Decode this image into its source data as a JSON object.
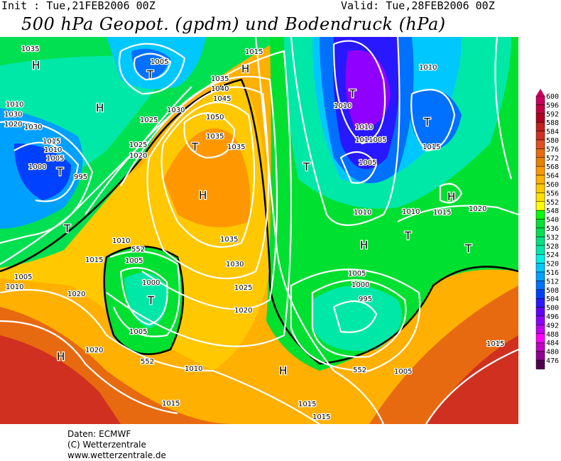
{
  "header": {
    "init": "Init : Tue,21FEB2006 00Z",
    "valid": "Valid: Tue,28FEB2006 00Z",
    "title": "500 hPa Geopot. (gpdm) und Bodendruck (hPa)"
  },
  "footer": {
    "line1": "Daten: ECMWF",
    "line2": "(C) Wetterzentrale",
    "line3": "www.wetterzentrale.de"
  },
  "colorbar": {
    "levels": [
      "600",
      "596",
      "592",
      "588",
      "584",
      "580",
      "576",
      "572",
      "568",
      "564",
      "560",
      "556",
      "552",
      "548",
      "540",
      "536",
      "532",
      "528",
      "524",
      "520",
      "516",
      "512",
      "508",
      "504",
      "500",
      "496",
      "492",
      "488",
      "484",
      "480",
      "476"
    ],
    "colors": [
      "#c8005a",
      "#c00040",
      "#b0001e",
      "#c0201e",
      "#d03020",
      "#e05020",
      "#e86a10",
      "#e88000",
      "#ff9800",
      "#ffb000",
      "#ffc800",
      "#ffe000",
      "#ffff00",
      "#00ff00",
      "#00e030",
      "#00e050",
      "#00e080",
      "#00e8a8",
      "#00f0e8",
      "#00c8ff",
      "#00a0ff",
      "#0070ff",
      "#0040ff",
      "#2818ff",
      "#6000ff",
      "#9000ff",
      "#c000f0",
      "#ff00ff",
      "#c000c0",
      "#900090",
      "#500050"
    ]
  },
  "map": {
    "contour_label": "552",
    "centers": [
      {
        "type": "H"
      },
      {
        "type": "T"
      },
      {
        "type": "H"
      },
      {
        "type": "T"
      },
      {
        "type": "H"
      },
      {
        "type": "T"
      },
      {
        "type": "T"
      },
      {
        "type": "T"
      },
      {
        "type": "T"
      },
      {
        "type": "H"
      },
      {
        "type": "T"
      },
      {
        "type": "T"
      },
      {
        "type": "H"
      },
      {
        "type": "H"
      },
      {
        "type": "T"
      },
      {
        "type": "H"
      },
      {
        "type": "T"
      },
      {
        "type": "H"
      }
    ],
    "isobar_labels": [
      "1035",
      "1010",
      "1005",
      "1035",
      "1040",
      "1045",
      "1050",
      "1035",
      "1035",
      "1030",
      "1025",
      "1020",
      "1030",
      "1025",
      "1030",
      "1020",
      "1015",
      "1010",
      "1005",
      "995",
      "1000",
      "1035",
      "1030",
      "1025",
      "1020",
      "1010",
      "1005",
      "1000",
      "1005",
      "1015",
      "1010",
      "1020",
      "1005",
      "1010",
      "1015",
      "1020",
      "1015",
      "1010",
      "1010",
      "1005",
      "1000",
      "995",
      "1005",
      "1015",
      "1015",
      "1020",
      "1011005",
      "1005",
      "1010",
      "1015",
      "1010",
      "1015",
      "1010",
      "1015"
    ]
  }
}
